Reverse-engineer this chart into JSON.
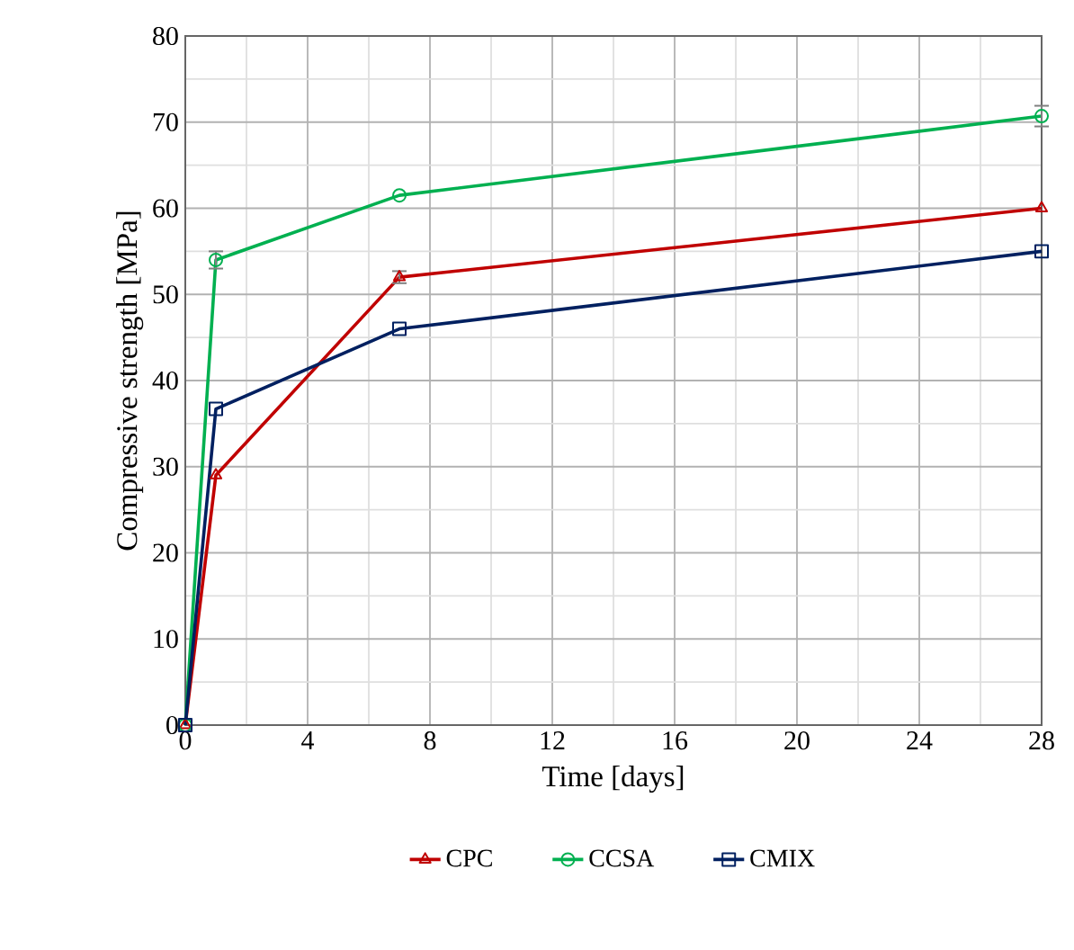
{
  "chart_data": {
    "type": "line",
    "xlabel": "Time [days]",
    "ylabel": "Compressive strength [MPa]",
    "x": [
      0,
      1,
      7,
      28
    ],
    "series": [
      {
        "name": "CPC",
        "color": "#c00000",
        "marker": "triangle",
        "values": [
          0,
          29,
          52,
          60
        ],
        "errors": [
          null,
          null,
          0.7,
          null
        ]
      },
      {
        "name": "CCSA",
        "color": "#00b050",
        "marker": "circle",
        "values": [
          0,
          54,
          61.5,
          70.7
        ],
        "errors": [
          null,
          1,
          null,
          1.2
        ]
      },
      {
        "name": "CMIX",
        "color": "#002060",
        "marker": "square",
        "values": [
          0,
          36.7,
          46,
          55
        ],
        "errors": [
          null,
          null,
          null,
          null
        ]
      }
    ],
    "xlim": [
      0,
      28
    ],
    "xticks": [
      0,
      4,
      8,
      12,
      16,
      20,
      24,
      28
    ],
    "ylim": [
      0,
      80
    ],
    "yticks": [
      0,
      10,
      20,
      30,
      40,
      50,
      60,
      70,
      80
    ],
    "grid": true,
    "legend": "bottom",
    "line_style": "solid"
  }
}
